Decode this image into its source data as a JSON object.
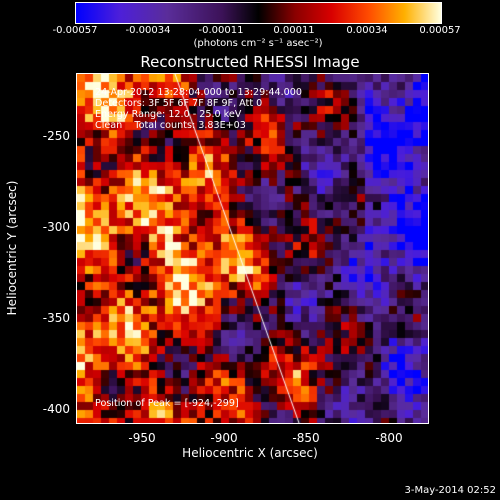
{
  "colorbar": {
    "ticks": [
      "-0.00057",
      "-0.00034",
      "-0.00011",
      "0.00011",
      "0.00034",
      "0.00057"
    ],
    "units": "(photons cm⁻² s⁻¹ asec⁻²)"
  },
  "title": "Reconstructed RHESSI Image",
  "annotations": {
    "time_range": "24-Apr-2012 13:28:04.000 to 13:29:44.000",
    "detectors": "Detectors: 3F 5F 6F 7F 8F 9F, Att 0",
    "energy": "Energy Range: 12.0 - 25.0 keV",
    "clean": "Clean    Total counts: 3.83E+03",
    "peak": "Position of Peak = [-924,-299]"
  },
  "axes": {
    "xlabel": "Heliocentric X (arcsec)",
    "ylabel": "Heliocentric Y (arcsec)",
    "xticks": [
      "-950",
      "-900",
      "-850",
      "-800"
    ],
    "yticks": [
      "-250",
      "-300",
      "-350",
      "-400"
    ]
  },
  "timestamp": "3-May-2014 02:52"
}
